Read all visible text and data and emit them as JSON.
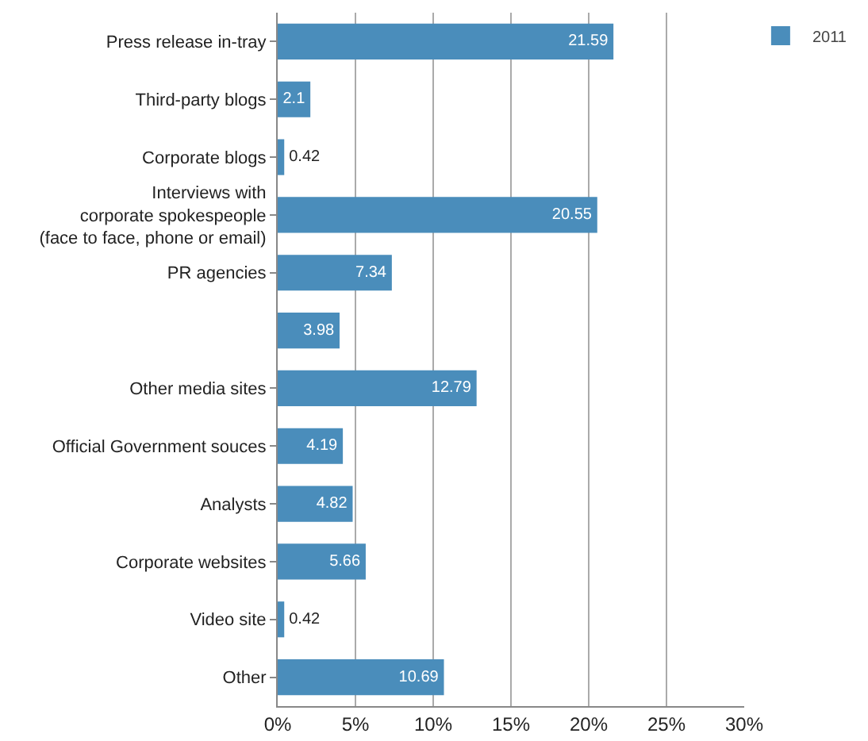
{
  "chart_data": {
    "type": "bar",
    "orientation": "horizontal",
    "categories": [
      "Press release in-tray",
      "Third-party blogs",
      "Corporate blogs",
      "Interviews with\ncorporate spokespeople\n(face to face, phone or email)",
      "PR agencies",
      null,
      "Other media sites",
      "Official Government souces",
      "Analysts",
      "Corporate websites",
      "Video site",
      "Other"
    ],
    "series": [
      {
        "name": "2011",
        "color": "#4a8dbb",
        "values": [
          21.59,
          2.1,
          0.42,
          20.55,
          7.34,
          3.98,
          12.79,
          4.19,
          4.82,
          5.66,
          0.42,
          10.69
        ]
      }
    ],
    "xlim": [
      0,
      30
    ],
    "xticks": [
      {
        "value": 0,
        "label": "0%"
      },
      {
        "value": 5,
        "label": "5%"
      },
      {
        "value": 10,
        "label": "10%"
      },
      {
        "value": 15,
        "label": "15%"
      },
      {
        "value": 20,
        "label": "20%"
      },
      {
        "value": 25,
        "label": "25%"
      },
      {
        "value": 30,
        "label": "30%"
      }
    ],
    "grid": "x",
    "legend": "top right",
    "data_labels": true
  }
}
